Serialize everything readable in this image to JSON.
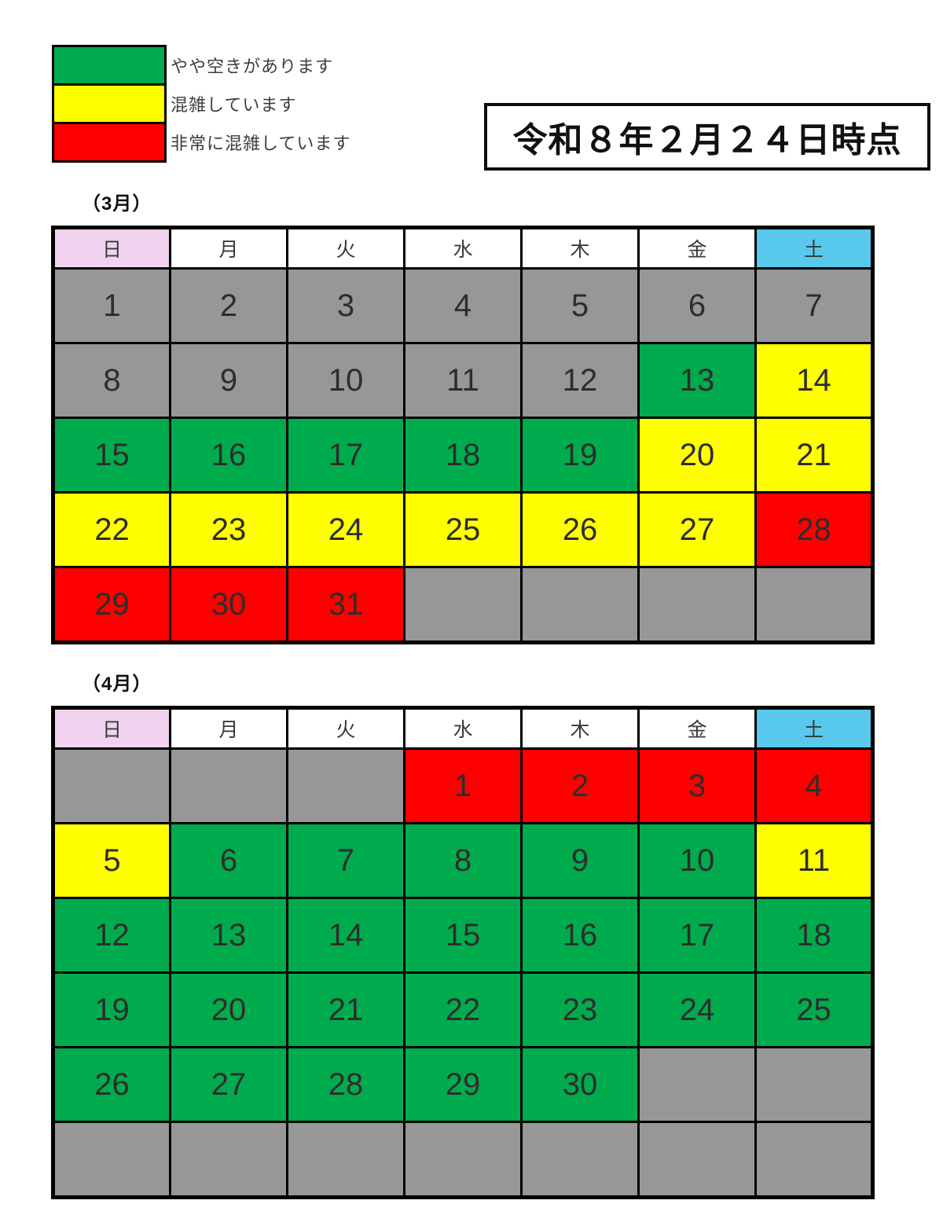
{
  "legend": {
    "items": [
      {
        "label": "やや空きがあります",
        "color": "#00AB4E",
        "status": "green"
      },
      {
        "label": "混雑しています",
        "color": "#FFFF00",
        "status": "yellow"
      },
      {
        "label": "非常に混雑しています",
        "color": "#FF0000",
        "status": "red"
      }
    ]
  },
  "date_stamp": "令和８年２月２４日時点",
  "weekday_header": [
    {
      "label": "日",
      "color": "#F1D3EF"
    },
    {
      "label": "月",
      "color": "#FFFFFF"
    },
    {
      "label": "火",
      "color": "#FFFFFF"
    },
    {
      "label": "水",
      "color": "#FFFFFF"
    },
    {
      "label": "木",
      "color": "#FFFFFF"
    },
    {
      "label": "金",
      "color": "#FFFFFF"
    },
    {
      "label": "土",
      "color": "#58C9EC"
    }
  ],
  "colors": {
    "green": "#00AB4E",
    "yellow": "#FFFF00",
    "red": "#FF0000",
    "gray": "#979797"
  },
  "calendars": [
    {
      "title": "（3月）",
      "rows": [
        [
          {
            "day": "1",
            "status": "gray"
          },
          {
            "day": "2",
            "status": "gray"
          },
          {
            "day": "3",
            "status": "gray"
          },
          {
            "day": "4",
            "status": "gray"
          },
          {
            "day": "5",
            "status": "gray"
          },
          {
            "day": "6",
            "status": "gray"
          },
          {
            "day": "7",
            "status": "gray"
          }
        ],
        [
          {
            "day": "8",
            "status": "gray"
          },
          {
            "day": "9",
            "status": "gray"
          },
          {
            "day": "10",
            "status": "gray"
          },
          {
            "day": "11",
            "status": "gray"
          },
          {
            "day": "12",
            "status": "gray"
          },
          {
            "day": "13",
            "status": "green"
          },
          {
            "day": "14",
            "status": "yellow"
          }
        ],
        [
          {
            "day": "15",
            "status": "green"
          },
          {
            "day": "16",
            "status": "green"
          },
          {
            "day": "17",
            "status": "green"
          },
          {
            "day": "18",
            "status": "green"
          },
          {
            "day": "19",
            "status": "green"
          },
          {
            "day": "20",
            "status": "yellow"
          },
          {
            "day": "21",
            "status": "yellow"
          }
        ],
        [
          {
            "day": "22",
            "status": "yellow"
          },
          {
            "day": "23",
            "status": "yellow"
          },
          {
            "day": "24",
            "status": "yellow"
          },
          {
            "day": "25",
            "status": "yellow"
          },
          {
            "day": "26",
            "status": "yellow"
          },
          {
            "day": "27",
            "status": "yellow"
          },
          {
            "day": "28",
            "status": "red"
          }
        ],
        [
          {
            "day": "29",
            "status": "red"
          },
          {
            "day": "30",
            "status": "red"
          },
          {
            "day": "31",
            "status": "red"
          },
          {
            "day": "",
            "status": "gray"
          },
          {
            "day": "",
            "status": "gray"
          },
          {
            "day": "",
            "status": "gray"
          },
          {
            "day": "",
            "status": "gray"
          }
        ]
      ]
    },
    {
      "title": "（4月）",
      "rows": [
        [
          {
            "day": "",
            "status": "gray"
          },
          {
            "day": "",
            "status": "gray"
          },
          {
            "day": "",
            "status": "gray"
          },
          {
            "day": "1",
            "status": "red"
          },
          {
            "day": "2",
            "status": "red"
          },
          {
            "day": "3",
            "status": "red"
          },
          {
            "day": "4",
            "status": "red"
          }
        ],
        [
          {
            "day": "5",
            "status": "yellow"
          },
          {
            "day": "6",
            "status": "green"
          },
          {
            "day": "7",
            "status": "green"
          },
          {
            "day": "8",
            "status": "green"
          },
          {
            "day": "9",
            "status": "green"
          },
          {
            "day": "10",
            "status": "green"
          },
          {
            "day": "11",
            "status": "yellow"
          }
        ],
        [
          {
            "day": "12",
            "status": "green"
          },
          {
            "day": "13",
            "status": "green"
          },
          {
            "day": "14",
            "status": "green"
          },
          {
            "day": "15",
            "status": "green"
          },
          {
            "day": "16",
            "status": "green"
          },
          {
            "day": "17",
            "status": "green"
          },
          {
            "day": "18",
            "status": "green"
          }
        ],
        [
          {
            "day": "19",
            "status": "green"
          },
          {
            "day": "20",
            "status": "green"
          },
          {
            "day": "21",
            "status": "green"
          },
          {
            "day": "22",
            "status": "green"
          },
          {
            "day": "23",
            "status": "green"
          },
          {
            "day": "24",
            "status": "green"
          },
          {
            "day": "25",
            "status": "green"
          }
        ],
        [
          {
            "day": "26",
            "status": "green"
          },
          {
            "day": "27",
            "status": "green"
          },
          {
            "day": "28",
            "status": "green"
          },
          {
            "day": "29",
            "status": "green"
          },
          {
            "day": "30",
            "status": "green"
          },
          {
            "day": "",
            "status": "gray"
          },
          {
            "day": "",
            "status": "gray"
          }
        ],
        [
          {
            "day": "",
            "status": "gray"
          },
          {
            "day": "",
            "status": "gray"
          },
          {
            "day": "",
            "status": "gray"
          },
          {
            "day": "",
            "status": "gray"
          },
          {
            "day": "",
            "status": "gray"
          },
          {
            "day": "",
            "status": "gray"
          },
          {
            "day": "",
            "status": "gray"
          }
        ]
      ]
    }
  ]
}
